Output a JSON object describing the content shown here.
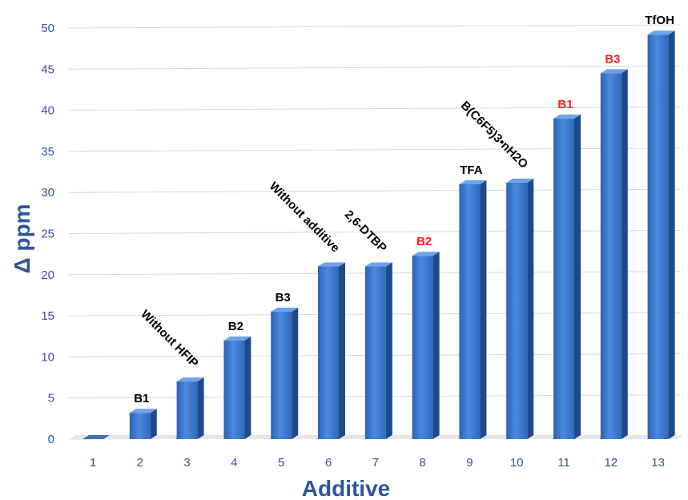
{
  "chart_data": {
    "type": "bar",
    "categories": [
      "1",
      "2",
      "3",
      "4",
      "5",
      "6",
      "7",
      "8",
      "9",
      "10",
      "11",
      "12",
      "13"
    ],
    "values": [
      0,
      3.2,
      7,
      12,
      15.5,
      21,
      21,
      22.3,
      31,
      31.2,
      39,
      44.5,
      49.2
    ],
    "bar_labels": [
      "",
      "B1",
      "Without HFIP",
      "B2",
      "B3",
      "Without additive",
      "2,6-DTBP",
      "B2",
      "TFA",
      "B(C6F5)3•nH2O",
      "B1",
      "B3",
      "TfOH"
    ],
    "label_colors": [
      "#000000",
      "#000000",
      "#000000",
      "#000000",
      "#000000",
      "#000000",
      "#000000",
      "#ff1a1a",
      "#000000",
      "#000000",
      "#ff1a1a",
      "#ff1a1a",
      "#000000"
    ],
    "xlabel": "Additive",
    "ylabel": "Δ ppm",
    "ylim": [
      0,
      50
    ],
    "yticks": [
      "0",
      "5",
      "10",
      "15",
      "20",
      "25",
      "30",
      "35",
      "40",
      "45",
      "50"
    ],
    "grid": true,
    "bar_color": "#3a78d0"
  }
}
